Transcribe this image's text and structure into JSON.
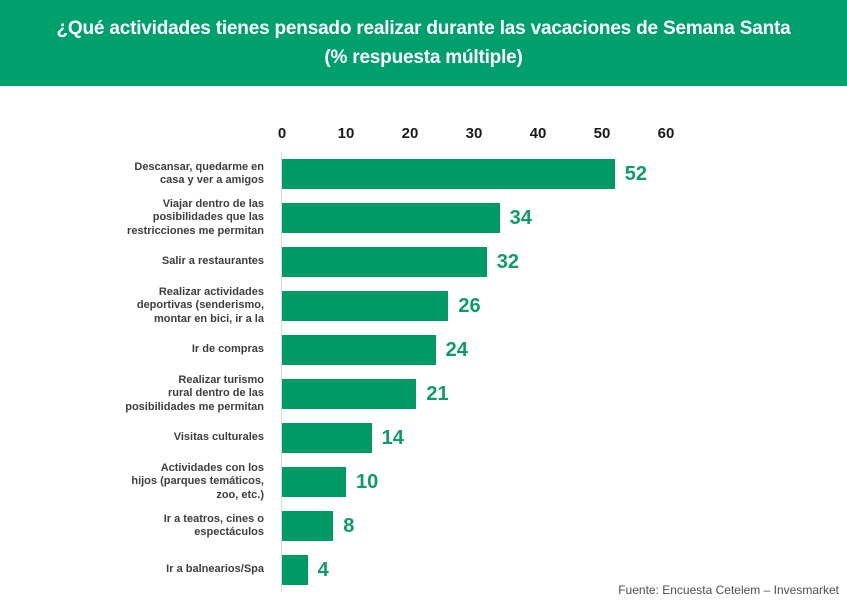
{
  "header": {
    "title": "¿Qué actividades tienes pensado realizar durante las vacaciones de Semana Santa\n(% respuesta múltiple)",
    "bg_color": "#00A06C",
    "text_color": "#FFFFFF"
  },
  "footer": {
    "source": "Fuente: Encuesta Cetelem – Invesmarket"
  },
  "chart_data": {
    "type": "bar",
    "orientation": "horizontal",
    "title": "¿Qué actividades tienes pensado realizar durante las vacaciones de Semana Santa (% respuesta múltiple)",
    "categories": [
      "Descansar, quedarme en\ncasa y ver a amigos",
      "Viajar dentro de las\nposibilidades que las\nrestricciones me permitan",
      "Salir a restaurantes",
      "Realizar actividades\ndeportivas (senderismo,\nmontar en bici, ir a la",
      "Ir de compras",
      "Realizar turismo\nrural dentro de las\nposibilidades me permitan",
      "Visitas culturales",
      "Actividades con los\nhijos (parques temáticos,\nzoo, etc.)",
      "Ir a teatros, cines o\nespectáculos",
      "Ir a balnearios/Spa"
    ],
    "values": [
      52,
      34,
      32,
      26,
      24,
      21,
      14,
      10,
      8,
      4
    ],
    "xticks": [
      0,
      10,
      20,
      30,
      40,
      50,
      60
    ],
    "xlim": [
      0,
      60
    ],
    "grid": false,
    "legend": false,
    "bar_color": "#009A66",
    "value_label_color": "#0D9C69",
    "axis_line_color": "#D9D9D9",
    "tick_label_color": "#1A1A1A",
    "category_label_color": "#3D3D3D"
  }
}
